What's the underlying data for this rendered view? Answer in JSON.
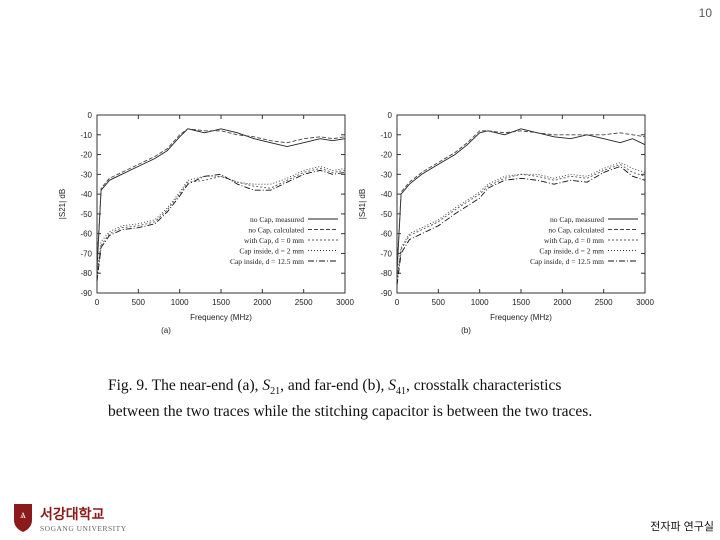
{
  "page_number": "10",
  "caption": {
    "prefix": "Fig. 9. The near-end (a), ",
    "s21_main": "S",
    "s21_sub": "21",
    "mid": ", and far-end (b), ",
    "s41_main": "S",
    "s41_sub": "41",
    "end": ", crosstalk  characteristics",
    "line2": "between the two traces while the stitching capacitor is between the two traces."
  },
  "university": {
    "name": "SOGANG UNIVERSITY",
    "korean": "서강대학교",
    "lab": "전자파 연구실"
  },
  "chart_data": [
    {
      "type": "line",
      "panel_label": "(a)",
      "xlabel": "Frequency (MHz)",
      "ylabel": "|S21| dB",
      "xlim": [
        0,
        3000
      ],
      "ylim": [
        -90,
        0
      ],
      "x_ticks": [
        "0",
        "500",
        "1000",
        "1500",
        "2000",
        "2500",
        "3000"
      ],
      "y_ticks": [
        "0",
        "-10",
        "-20",
        "-30",
        "-40",
        "-50",
        "-60",
        "-70",
        "-80",
        "-90"
      ],
      "legend_position": "bottom-right",
      "grid": false,
      "series": [
        {
          "name": "no Cap, measured",
          "x": [
            0,
            50,
            150,
            300,
            500,
            700,
            850,
            1000,
            1100,
            1300,
            1500,
            1700,
            1900,
            2100,
            2300,
            2500,
            2700,
            2850,
            3000
          ],
          "y": [
            -78,
            -38,
            -33,
            -30,
            -26,
            -22,
            -18,
            -11,
            -7,
            -9,
            -7,
            -9,
            -12,
            -14,
            -16,
            -14,
            -12,
            -13,
            -12
          ]
        },
        {
          "name": "no Cap, calculated",
          "x": [
            0,
            50,
            150,
            300,
            500,
            700,
            850,
            1000,
            1100,
            1300,
            1500,
            1700,
            1900,
            2100,
            2300,
            2500,
            2700,
            2850,
            3000
          ],
          "y": [
            -75,
            -37,
            -32,
            -29,
            -25,
            -21,
            -17,
            -10,
            -7,
            -8,
            -8,
            -10,
            -11,
            -13,
            -14,
            -12,
            -11,
            -12,
            -11
          ]
        },
        {
          "name": "with Cap, d = 0 mm",
          "x": [
            0,
            50,
            150,
            300,
            500,
            700,
            850,
            1000,
            1100,
            1300,
            1500,
            1700,
            1900,
            2100,
            2300,
            2500,
            2700,
            2850,
            3000
          ],
          "y": [
            -82,
            -66,
            -60,
            -57,
            -56,
            -54,
            -48,
            -40,
            -34,
            -33,
            -31,
            -34,
            -36,
            -37,
            -33,
            -29,
            -27,
            -29,
            -28
          ]
        },
        {
          "name": "Cap inside, d = 2 mm",
          "x": [
            0,
            50,
            150,
            300,
            500,
            700,
            850,
            1000,
            1100,
            1300,
            1500,
            1700,
            1900,
            2100,
            2300,
            2500,
            2700,
            2850,
            3000
          ],
          "y": [
            -80,
            -64,
            -59,
            -56,
            -55,
            -53,
            -47,
            -39,
            -33,
            -31,
            -31,
            -34,
            -35,
            -35,
            -32,
            -28,
            -26,
            -28,
            -27
          ]
        },
        {
          "name": "Cap inside, d = 12.5 mm",
          "x": [
            0,
            50,
            150,
            300,
            500,
            700,
            850,
            1000,
            1100,
            1300,
            1500,
            1700,
            1900,
            2100,
            2300,
            2500,
            2700,
            2850,
            3000
          ],
          "y": [
            -84,
            -67,
            -61,
            -58,
            -57,
            -55,
            -49,
            -41,
            -35,
            -31,
            -30,
            -35,
            -38,
            -38,
            -34,
            -30,
            -28,
            -30,
            -29
          ]
        }
      ]
    },
    {
      "type": "line",
      "panel_label": "(b)",
      "xlabel": "Frequency (MHz)",
      "ylabel": "|S41| dB",
      "xlim": [
        0,
        3000
      ],
      "ylim": [
        -90,
        0
      ],
      "x_ticks": [
        "0",
        "500",
        "1000",
        "1500",
        "2000",
        "2500",
        "3000"
      ],
      "y_ticks": [
        "0",
        "-10",
        "-20",
        "-30",
        "-40",
        "-50",
        "-60",
        "-70",
        "-80",
        "-90"
      ],
      "legend_position": "bottom-right",
      "grid": false,
      "series": [
        {
          "name": "no Cap, measured",
          "x": [
            0,
            50,
            150,
            300,
            500,
            700,
            850,
            1000,
            1100,
            1300,
            1500,
            1700,
            1900,
            2100,
            2300,
            2500,
            2700,
            2850,
            3000
          ],
          "y": [
            -80,
            -40,
            -35,
            -30,
            -25,
            -20,
            -15,
            -9,
            -8,
            -10,
            -7,
            -9,
            -11,
            -12,
            -10,
            -12,
            -14,
            -12,
            -15
          ]
        },
        {
          "name": "no Cap, calculated",
          "x": [
            0,
            50,
            150,
            300,
            500,
            700,
            850,
            1000,
            1100,
            1300,
            1500,
            1700,
            1900,
            2100,
            2300,
            2500,
            2700,
            2850,
            3000
          ],
          "y": [
            -78,
            -39,
            -34,
            -29,
            -24,
            -19,
            -14,
            -8,
            -8,
            -9,
            -8,
            -9,
            -10,
            -10,
            -10,
            -10,
            -9,
            -10,
            -11
          ]
        },
        {
          "name": "with Cap, d = 0 mm",
          "x": [
            0,
            50,
            150,
            300,
            500,
            700,
            850,
            1000,
            1100,
            1300,
            1500,
            1700,
            1900,
            2100,
            2300,
            2500,
            2700,
            2850,
            3000
          ],
          "y": [
            -84,
            -68,
            -61,
            -58,
            -54,
            -48,
            -44,
            -40,
            -36,
            -32,
            -30,
            -31,
            -33,
            -31,
            -32,
            -28,
            -25,
            -29,
            -31
          ]
        },
        {
          "name": "Cap inside, d = 2 mm",
          "x": [
            0,
            50,
            150,
            300,
            500,
            700,
            850,
            1000,
            1100,
            1300,
            1500,
            1700,
            1900,
            2100,
            2300,
            2500,
            2700,
            2850,
            3000
          ],
          "y": [
            -82,
            -67,
            -60,
            -57,
            -53,
            -47,
            -43,
            -39,
            -35,
            -31,
            -30,
            -30,
            -32,
            -30,
            -31,
            -27,
            -24,
            -27,
            -29
          ]
        },
        {
          "name": "Cap inside, d = 12.5 mm",
          "x": [
            0,
            50,
            150,
            300,
            500,
            700,
            850,
            1000,
            1100,
            1300,
            1500,
            1700,
            1900,
            2100,
            2300,
            2500,
            2700,
            2850,
            3000
          ],
          "y": [
            -86,
            -70,
            -63,
            -60,
            -56,
            -50,
            -46,
            -42,
            -37,
            -33,
            -32,
            -33,
            -35,
            -33,
            -34,
            -29,
            -26,
            -31,
            -33
          ]
        }
      ]
    }
  ]
}
